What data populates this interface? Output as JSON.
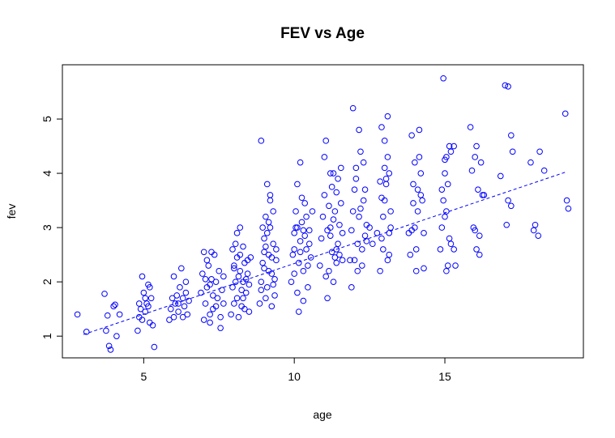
{
  "chart_data": {
    "type": "scatter",
    "title": "FEV vs Age",
    "xlabel": "age",
    "ylabel": "fev",
    "xlim": [
      2.3,
      19.6
    ],
    "ylim": [
      0.6,
      6.0
    ],
    "x_ticks": [
      5,
      10,
      15
    ],
    "y_ticks": [
      1,
      2,
      3,
      4,
      5
    ],
    "x_tick_labels": [
      "5",
      "10",
      "15"
    ],
    "y_tick_labels": [
      "1",
      "2",
      "3",
      "4",
      "5"
    ],
    "grid": false,
    "legend": "none",
    "point_color": "#0000FF",
    "series": [
      {
        "points": [
          [
            2.8,
            1.4
          ],
          [
            3.1,
            1.08
          ],
          [
            3.7,
            1.78
          ],
          [
            3.75,
            1.1
          ],
          [
            3.8,
            1.38
          ],
          [
            3.85,
            0.82
          ],
          [
            3.9,
            0.75
          ],
          [
            4.0,
            1.55
          ],
          [
            4.05,
            1.58
          ],
          [
            4.1,
            1.0
          ],
          [
            4.2,
            1.4
          ],
          [
            4.8,
            1.1
          ],
          [
            4.85,
            1.35
          ],
          [
            4.9,
            1.5
          ],
          [
            4.95,
            2.1
          ],
          [
            5.0,
            1.8
          ],
          [
            5.05,
            1.45
          ],
          [
            5.1,
            1.6
          ],
          [
            5.15,
            1.95
          ],
          [
            5.2,
            1.25
          ],
          [
            5.25,
            1.7
          ],
          [
            5.3,
            1.2
          ],
          [
            5.35,
            0.8
          ],
          [
            4.85,
            1.6
          ],
          [
            4.95,
            1.3
          ],
          [
            5.05,
            1.7
          ],
          [
            5.2,
            1.9
          ],
          [
            5.15,
            1.55
          ],
          [
            5.85,
            1.3
          ],
          [
            5.9,
            1.5
          ],
          [
            5.95,
            1.7
          ],
          [
            6.0,
            2.1
          ],
          [
            6.05,
            1.6
          ],
          [
            6.1,
            1.75
          ],
          [
            6.15,
            1.45
          ],
          [
            6.2,
            1.9
          ],
          [
            6.25,
            2.25
          ],
          [
            6.3,
            1.35
          ],
          [
            6.35,
            1.55
          ],
          [
            6.4,
            1.8
          ],
          [
            6.45,
            1.4
          ],
          [
            6.5,
            1.65
          ],
          [
            6.0,
            1.35
          ],
          [
            6.15,
            1.6
          ],
          [
            6.3,
            1.7
          ],
          [
            6.4,
            2.0
          ],
          [
            6.9,
            1.8
          ],
          [
            6.95,
            2.15
          ],
          [
            7.0,
            2.55
          ],
          [
            7.05,
            1.6
          ],
          [
            7.1,
            1.9
          ],
          [
            7.15,
            2.3
          ],
          [
            7.2,
            1.4
          ],
          [
            7.25,
            2.05
          ],
          [
            7.3,
            1.75
          ],
          [
            7.35,
            2.5
          ],
          [
            7.4,
            1.55
          ],
          [
            7.45,
            1.7
          ],
          [
            7.5,
            2.2
          ],
          [
            7.55,
            1.35
          ],
          [
            7.6,
            1.85
          ],
          [
            7.65,
            1.6
          ],
          [
            7.0,
            1.3
          ],
          [
            7.1,
            2.4
          ],
          [
            7.2,
            1.95
          ],
          [
            7.3,
            1.5
          ],
          [
            7.4,
            2.0
          ],
          [
            7.55,
            1.15
          ],
          [
            7.65,
            2.1
          ],
          [
            7.2,
            1.25
          ],
          [
            7.25,
            2.55
          ],
          [
            7.05,
            2.05
          ],
          [
            7.9,
            1.4
          ],
          [
            7.95,
            1.9
          ],
          [
            8.0,
            2.3
          ],
          [
            8.05,
            2.7
          ],
          [
            8.1,
            1.7
          ],
          [
            8.15,
            2.1
          ],
          [
            8.2,
            2.5
          ],
          [
            8.25,
            1.55
          ],
          [
            8.3,
            2.0
          ],
          [
            8.35,
            2.35
          ],
          [
            8.4,
            1.8
          ],
          [
            8.45,
            2.15
          ],
          [
            8.5,
            1.45
          ],
          [
            8.55,
            2.45
          ],
          [
            7.95,
            2.6
          ],
          [
            8.0,
            1.6
          ],
          [
            8.05,
            2.0
          ],
          [
            8.1,
            2.9
          ],
          [
            8.15,
            1.35
          ],
          [
            8.2,
            2.2
          ],
          [
            8.25,
            1.85
          ],
          [
            8.3,
            2.65
          ],
          [
            8.35,
            1.5
          ],
          [
            8.4,
            2.05
          ],
          [
            8.45,
            2.4
          ],
          [
            8.5,
            1.95
          ],
          [
            8.2,
            3.0
          ],
          [
            8.0,
            2.25
          ],
          [
            8.3,
            1.7
          ],
          [
            8.1,
            2.45
          ],
          [
            8.85,
            1.6
          ],
          [
            8.9,
            2.0
          ],
          [
            8.95,
            2.35
          ],
          [
            9.0,
            2.8
          ],
          [
            9.05,
            3.2
          ],
          [
            9.1,
            1.9
          ],
          [
            9.15,
            2.5
          ],
          [
            9.2,
            3.0
          ],
          [
            9.25,
            2.15
          ],
          [
            9.3,
            2.7
          ],
          [
            9.35,
            1.75
          ],
          [
            9.4,
            2.4
          ],
          [
            8.9,
            1.85
          ],
          [
            8.95,
            3.0
          ],
          [
            9.0,
            2.55
          ],
          [
            9.05,
            1.7
          ],
          [
            9.1,
            2.9
          ],
          [
            9.15,
            2.2
          ],
          [
            9.2,
            3.6
          ],
          [
            9.25,
            1.55
          ],
          [
            9.3,
            3.3
          ],
          [
            9.35,
            2.05
          ],
          [
            9.4,
            2.6
          ],
          [
            9.1,
            3.8
          ],
          [
            9.2,
            3.5
          ],
          [
            9.0,
            2.25
          ],
          [
            9.05,
            2.65
          ],
          [
            9.15,
            3.1
          ],
          [
            9.25,
            2.45
          ],
          [
            9.3,
            1.95
          ],
          [
            8.9,
            4.6
          ],
          [
            9.9,
            2.0
          ],
          [
            9.95,
            2.5
          ],
          [
            10.0,
            2.9
          ],
          [
            10.05,
            3.3
          ],
          [
            10.1,
            1.8
          ],
          [
            10.15,
            2.35
          ],
          [
            10.2,
            2.75
          ],
          [
            10.25,
            3.1
          ],
          [
            10.3,
            2.2
          ],
          [
            10.35,
            3.45
          ],
          [
            10.4,
            2.6
          ],
          [
            10.45,
            1.9
          ],
          [
            10.5,
            2.95
          ],
          [
            10.55,
            2.45
          ],
          [
            10.6,
            3.3
          ],
          [
            10.0,
            2.15
          ],
          [
            10.05,
            3.0
          ],
          [
            10.1,
            3.8
          ],
          [
            10.15,
            1.45
          ],
          [
            10.2,
            2.55
          ],
          [
            10.25,
            3.55
          ],
          [
            10.3,
            1.65
          ],
          [
            10.35,
            2.85
          ],
          [
            10.4,
            3.2
          ],
          [
            10.45,
            2.3
          ],
          [
            10.5,
            2.7
          ],
          [
            10.2,
            4.2
          ],
          [
            10.1,
            3.0
          ],
          [
            10.3,
            2.95
          ],
          [
            10.0,
            2.6
          ],
          [
            10.85,
            2.3
          ],
          [
            10.9,
            2.8
          ],
          [
            10.95,
            3.2
          ],
          [
            11.0,
            3.6
          ],
          [
            11.05,
            2.1
          ],
          [
            11.1,
            2.95
          ],
          [
            11.15,
            3.4
          ],
          [
            11.2,
            4.0
          ],
          [
            11.25,
            2.55
          ],
          [
            11.3,
            3.15
          ],
          [
            11.35,
            2.45
          ],
          [
            11.4,
            3.65
          ],
          [
            11.45,
            2.7
          ],
          [
            11.5,
            3.05
          ],
          [
            11.55,
            4.1
          ],
          [
            11.6,
            2.4
          ],
          [
            11.0,
            4.3
          ],
          [
            11.05,
            4.6
          ],
          [
            11.1,
            1.7
          ],
          [
            11.15,
            2.2
          ],
          [
            11.2,
            2.85
          ],
          [
            11.25,
            3.75
          ],
          [
            11.3,
            2.0
          ],
          [
            11.35,
            3.3
          ],
          [
            11.4,
            2.6
          ],
          [
            11.45,
            3.9
          ],
          [
            11.5,
            2.5
          ],
          [
            11.55,
            3.45
          ],
          [
            11.6,
            2.9
          ],
          [
            11.2,
            3.0
          ],
          [
            11.3,
            4.0
          ],
          [
            11.4,
            2.35
          ],
          [
            11.85,
            2.4
          ],
          [
            11.9,
            2.95
          ],
          [
            11.95,
            3.3
          ],
          [
            12.0,
            3.7
          ],
          [
            12.05,
            4.1
          ],
          [
            12.1,
            2.7
          ],
          [
            12.15,
            3.2
          ],
          [
            12.2,
            4.4
          ],
          [
            12.25,
            2.6
          ],
          [
            12.3,
            3.5
          ],
          [
            12.35,
            2.85
          ],
          [
            12.4,
            3.05
          ],
          [
            11.9,
            1.9
          ],
          [
            11.95,
            5.2
          ],
          [
            12.0,
            2.4
          ],
          [
            12.05,
            3.9
          ],
          [
            12.1,
            2.2
          ],
          [
            12.15,
            4.8
          ],
          [
            12.2,
            3.35
          ],
          [
            12.25,
            2.3
          ],
          [
            12.3,
            4.2
          ],
          [
            12.35,
            3.7
          ],
          [
            12.4,
            2.75
          ],
          [
            12.5,
            3.0
          ],
          [
            12.6,
            2.7
          ],
          [
            12.85,
            2.2
          ],
          [
            12.9,
            2.8
          ],
          [
            12.95,
            3.2
          ],
          [
            13.0,
            3.5
          ],
          [
            13.05,
            3.9
          ],
          [
            13.1,
            4.3
          ],
          [
            13.15,
            2.5
          ],
          [
            13.2,
            3.0
          ],
          [
            12.9,
            4.85
          ],
          [
            13.0,
            4.6
          ],
          [
            13.05,
            3.8
          ],
          [
            13.1,
            2.4
          ],
          [
            13.15,
            4.0
          ],
          [
            13.2,
            3.3
          ],
          [
            12.95,
            2.6
          ],
          [
            12.85,
            3.85
          ],
          [
            13.1,
            5.05
          ],
          [
            12.9,
            3.55
          ],
          [
            13.0,
            4.1
          ],
          [
            13.15,
            2.9
          ],
          [
            12.75,
            2.9
          ],
          [
            13.85,
            2.5
          ],
          [
            13.9,
            2.95
          ],
          [
            13.95,
            3.8
          ],
          [
            14.0,
            4.2
          ],
          [
            14.05,
            2.2
          ],
          [
            14.1,
            3.3
          ],
          [
            14.15,
            4.8
          ],
          [
            14.2,
            3.6
          ],
          [
            13.9,
            4.7
          ],
          [
            14.0,
            3.0
          ],
          [
            14.05,
            2.6
          ],
          [
            14.1,
            3.7
          ],
          [
            14.2,
            4.0
          ],
          [
            14.3,
            2.9
          ],
          [
            13.95,
            3.45
          ],
          [
            14.15,
            4.3
          ],
          [
            14.25,
            3.5
          ],
          [
            14.3,
            2.25
          ],
          [
            13.8,
            2.9
          ],
          [
            14.85,
            2.6
          ],
          [
            14.9,
            3.0
          ],
          [
            14.95,
            3.5
          ],
          [
            15.0,
            4.0
          ],
          [
            15.05,
            2.2
          ],
          [
            15.1,
            3.8
          ],
          [
            15.15,
            4.5
          ],
          [
            15.2,
            2.7
          ],
          [
            14.95,
            5.75
          ],
          [
            15.0,
            4.25
          ],
          [
            15.05,
            3.3
          ],
          [
            15.1,
            2.3
          ],
          [
            15.2,
            4.4
          ],
          [
            15.3,
            2.6
          ],
          [
            15.0,
            3.2
          ],
          [
            15.15,
            2.8
          ],
          [
            15.3,
            4.5
          ],
          [
            15.35,
            2.3
          ],
          [
            14.9,
            3.7
          ],
          [
            15.05,
            4.3
          ],
          [
            15.85,
            4.85
          ],
          [
            15.9,
            4.05
          ],
          [
            15.95,
            3.0
          ],
          [
            16.0,
            4.3
          ],
          [
            16.05,
            2.6
          ],
          [
            16.1,
            3.7
          ],
          [
            16.15,
            2.85
          ],
          [
            16.2,
            4.2
          ],
          [
            16.3,
            3.6
          ],
          [
            16.0,
            2.95
          ],
          [
            16.05,
            4.5
          ],
          [
            16.15,
            2.5
          ],
          [
            16.25,
            3.6
          ],
          [
            16.85,
            3.95
          ],
          [
            17.0,
            5.62
          ],
          [
            17.1,
            5.6
          ],
          [
            17.2,
            4.7
          ],
          [
            17.25,
            4.4
          ],
          [
            17.1,
            3.5
          ],
          [
            17.05,
            3.05
          ],
          [
            17.2,
            3.4
          ],
          [
            17.85,
            4.2
          ],
          [
            17.95,
            2.95
          ],
          [
            18.0,
            3.05
          ],
          [
            18.1,
            2.85
          ],
          [
            18.15,
            4.4
          ],
          [
            18.3,
            4.05
          ],
          [
            19.0,
            5.1
          ],
          [
            19.05,
            3.5
          ],
          [
            19.1,
            3.35
          ]
        ]
      }
    ],
    "regression_line": {
      "style": "dashed",
      "from": [
        3.0,
        1.03
      ],
      "to": [
        19.0,
        4.02
      ]
    }
  }
}
